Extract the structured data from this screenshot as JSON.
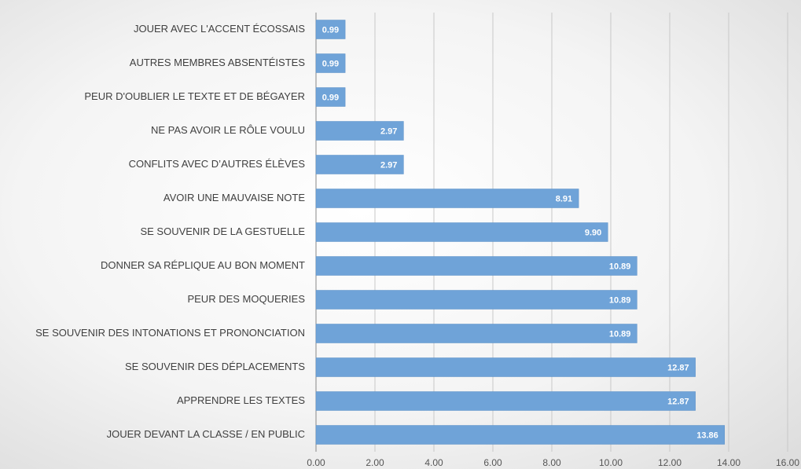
{
  "chart_data": {
    "type": "bar",
    "orientation": "horizontal",
    "categories": [
      "JOUER AVEC L'ACCENT ÉCOSSAIS",
      "AUTRES MEMBRES ABSENTÉISTES",
      "PEUR D'OUBLIER LE TEXTE ET DE BÉGAYER",
      "NE PAS AVOIR LE RÔLE VOULU",
      "CONFLITS AVEC D’AUTRES ÉLÈVES",
      "AVOIR UNE MAUVAISE NOTE",
      "SE SOUVENIR DE LA GESTUELLE",
      "DONNER SA RÉPLIQUE AU BON MOMENT",
      "PEUR DES MOQUERIES",
      "SE SOUVENIR DES INTONATIONS ET PRONONCIATION",
      "SE SOUVENIR DES DÉPLACEMENTS",
      "APPRENDRE LES TEXTES",
      "JOUER DEVANT LA CLASSE / EN PUBLIC"
    ],
    "values": [
      0.99,
      0.99,
      0.99,
      2.97,
      2.97,
      8.91,
      9.9,
      10.89,
      10.89,
      10.89,
      12.87,
      12.87,
      13.86
    ],
    "value_labels": [
      "0.99",
      "0.99",
      "0.99",
      "2.97",
      "2.97",
      "8.91",
      "9.90",
      "10.89",
      "10.89",
      "10.89",
      "12.87",
      "12.87",
      "13.86"
    ],
    "color": "#6fa3d8",
    "xlim": [
      0,
      16
    ],
    "xticks": [
      {
        "value": 0,
        "label": "0.00"
      },
      {
        "value": 2,
        "label": "2.00"
      },
      {
        "value": 4,
        "label": "4.00"
      },
      {
        "value": 6,
        "label": "6.00"
      },
      {
        "value": 8,
        "label": "8.00"
      },
      {
        "value": 10,
        "label": "10.00"
      },
      {
        "value": 12,
        "label": "12.00"
      },
      {
        "value": 14,
        "label": "14.00"
      },
      {
        "value": 16,
        "label": "16.00"
      }
    ],
    "grid": true
  }
}
